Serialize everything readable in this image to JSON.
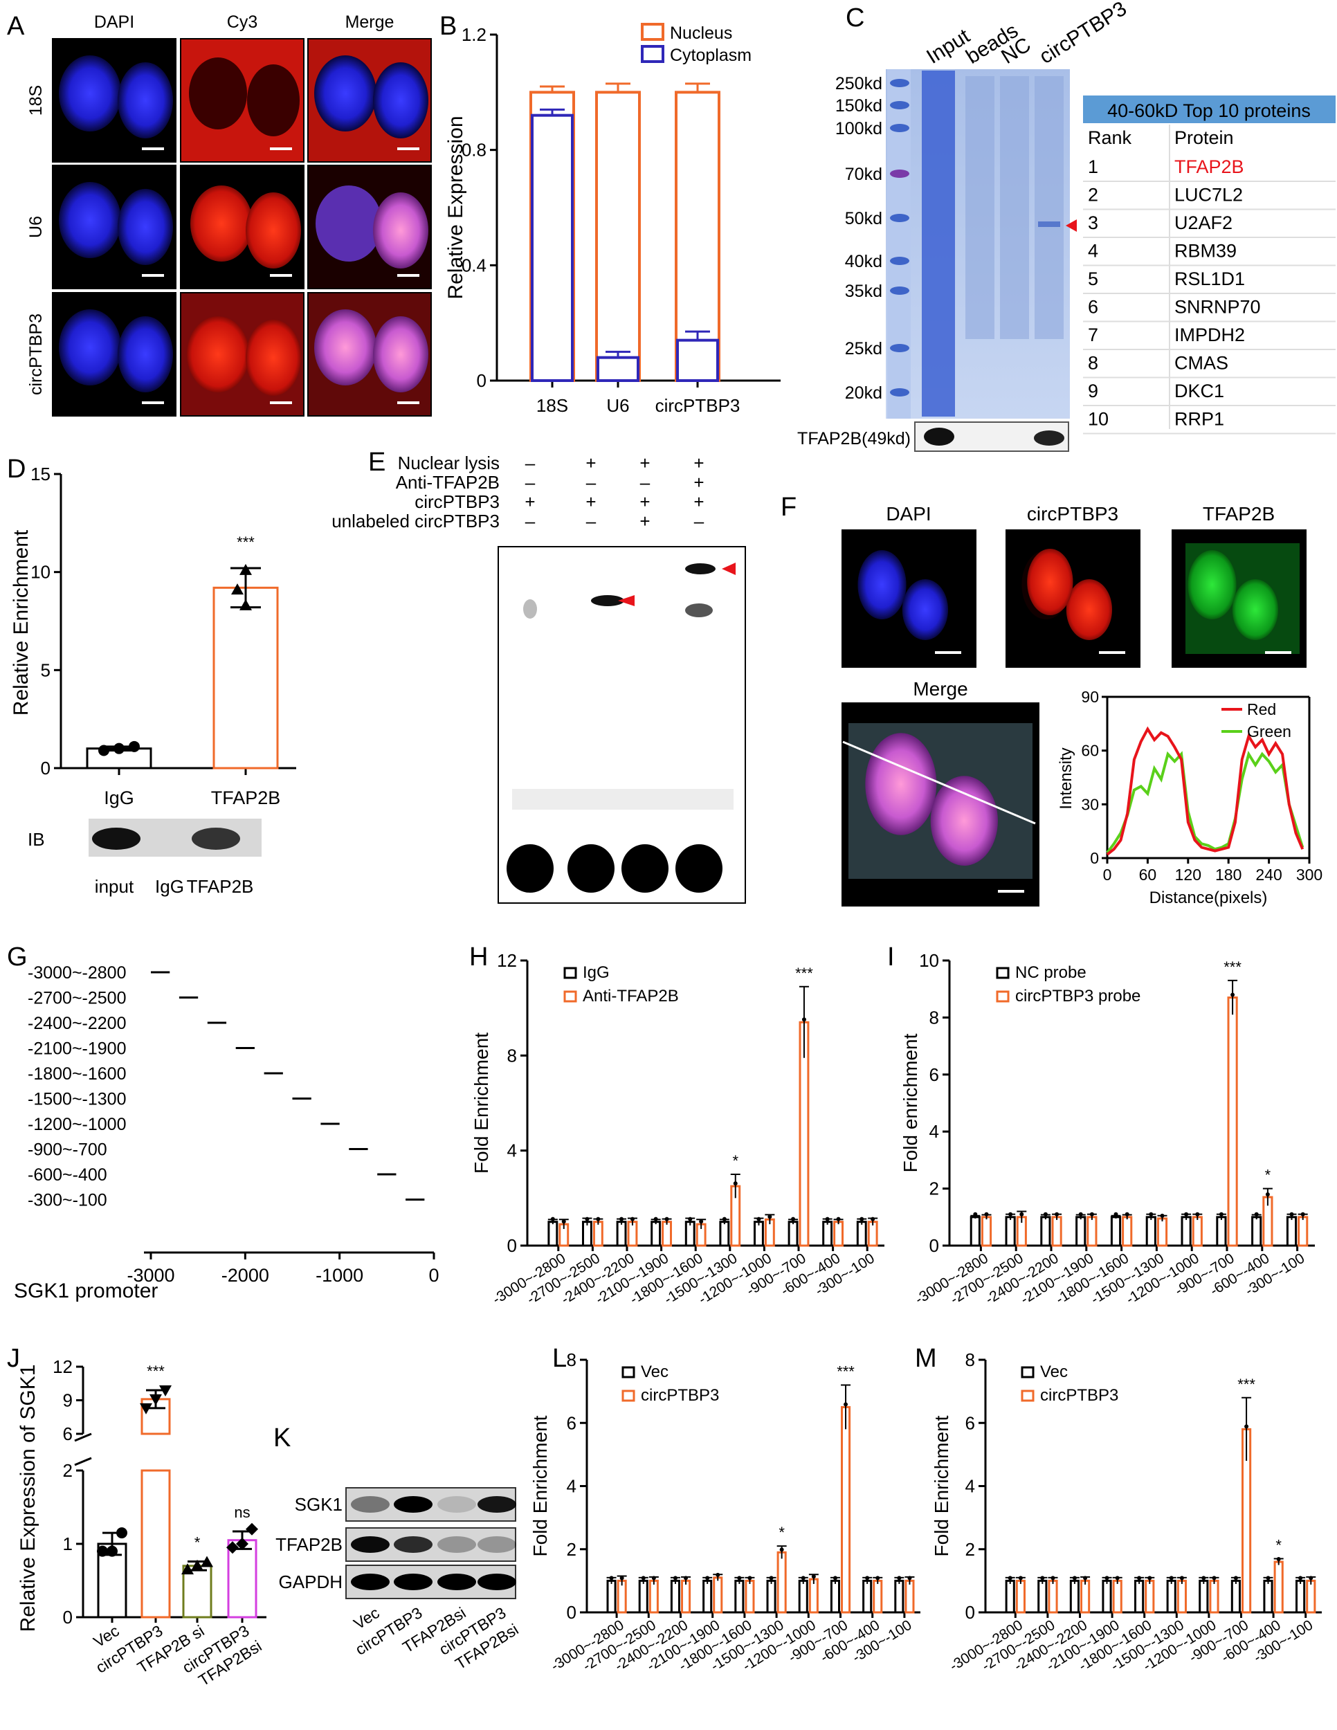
{
  "panel_labels": [
    "A",
    "B",
    "C",
    "D",
    "E",
    "F",
    "G",
    "H",
    "I",
    "J",
    "K",
    "L",
    "M"
  ],
  "colors": {
    "orange": "#f06a2a",
    "blue": "#2f27b8",
    "red_arrow": "#e8141b",
    "grid_border": "#ffffff"
  },
  "panel_a": {
    "columns": [
      "DAPI",
      "Cy3",
      "Merge"
    ],
    "rows": [
      "18S",
      "U6",
      "circPTBP3"
    ]
  },
  "panel_c": {
    "lanes": [
      "Input",
      "beads",
      "NC",
      "circPTBP3"
    ],
    "markers": [
      "250kd",
      "150kd",
      "100kd",
      "70kd",
      "50kd",
      "40kd",
      "35kd",
      "25kd",
      "20kd"
    ],
    "blot_label": "TFAP2B(49kd)",
    "table_title": "40-60kD Top 10 proteins",
    "table_headers": [
      "Rank",
      "Protein"
    ],
    "table_rows": [
      [
        "1",
        "TFAP2B"
      ],
      [
        "2",
        "LUC7L2"
      ],
      [
        "3",
        "U2AF2"
      ],
      [
        "4",
        "RBM39"
      ],
      [
        "5",
        "RSL1D1"
      ],
      [
        "6",
        "SNRNP70"
      ],
      [
        "7",
        "IMPDH2"
      ],
      [
        "8",
        "CMAS"
      ],
      [
        "9",
        "DKC1"
      ],
      [
        "10",
        "RRP1"
      ]
    ]
  },
  "panel_d_ib": {
    "label": "IB",
    "lanes": [
      "input",
      "IgG",
      "TFAP2B"
    ]
  },
  "panel_e": {
    "rows": [
      {
        "label": "Nuclear lysis",
        "marks": [
          "–",
          "+",
          "+",
          "+"
        ]
      },
      {
        "label": "Anti-TFAP2B",
        "marks": [
          "–",
          "–",
          "–",
          "+"
        ]
      },
      {
        "label": "circPTBP3",
        "marks": [
          "+",
          "+",
          "+",
          "+"
        ]
      },
      {
        "label": "unlabeled circPTBP3",
        "marks": [
          "–",
          "–",
          "+",
          "–"
        ]
      }
    ]
  },
  "panel_f": {
    "images": [
      "DAPI",
      "circPTBP3",
      "TFAP2B",
      "Merge"
    ]
  },
  "panel_k": {
    "rows": [
      "SGK1",
      "TFAP2B",
      "GAPDH"
    ],
    "lanes": [
      "Vec",
      "circPTBP3",
      "TFAP2Bsi",
      "circPTBP3\nTFAP2Bsi"
    ]
  },
  "chart_data": [
    {
      "id": "B",
      "type": "bar",
      "categories": [
        "18S",
        "U6",
        "circPTBP3"
      ],
      "series": [
        {
          "name": "Nucleus",
          "values": [
            1.0,
            1.0,
            1.0
          ],
          "error": [
            0.02,
            0.03,
            0.03
          ]
        },
        {
          "name": "Cytoplasm",
          "values": [
            0.92,
            0.08,
            0.14
          ],
          "error": [
            0.02,
            0.02,
            0.03
          ]
        }
      ],
      "ylabel": "Relative Expression",
      "ylim": [
        0,
        1.2
      ],
      "yticks": [
        0,
        0.4,
        0.8,
        1.2
      ],
      "legend": "top-right"
    },
    {
      "id": "D",
      "type": "bar",
      "categories": [
        "IgG",
        "TFAP2B"
      ],
      "values": [
        1.0,
        9.2
      ],
      "error": [
        0.1,
        1.0
      ],
      "points": [
        [
          0.9,
          1.0,
          1.1
        ],
        [
          8.3,
          9.1,
          10.1
        ]
      ],
      "ylabel": "Relative Enrichment",
      "ylim": [
        0,
        15
      ],
      "yticks": [
        0,
        5,
        10,
        15
      ],
      "annotations": [
        "",
        "***"
      ]
    },
    {
      "id": "F",
      "type": "line",
      "x": [
        0,
        10,
        20,
        30,
        40,
        50,
        60,
        70,
        80,
        90,
        100,
        110,
        120,
        130,
        140,
        150,
        160,
        170,
        180,
        190,
        200,
        210,
        220,
        230,
        240,
        250,
        260,
        270,
        280,
        290
      ],
      "series": [
        {
          "name": "Red",
          "values": [
            2,
            5,
            10,
            25,
            55,
            65,
            72,
            66,
            70,
            68,
            62,
            55,
            20,
            10,
            6,
            5,
            4,
            5,
            6,
            20,
            55,
            68,
            62,
            66,
            58,
            64,
            58,
            30,
            14,
            5
          ]
        },
        {
          "name": "Green",
          "values": [
            3,
            8,
            14,
            24,
            38,
            40,
            36,
            50,
            44,
            58,
            54,
            58,
            26,
            12,
            8,
            7,
            5,
            6,
            8,
            22,
            44,
            58,
            52,
            58,
            54,
            48,
            52,
            30,
            18,
            6
          ]
        }
      ],
      "xlabel": "Distance(pixels)",
      "ylabel": "Intensity",
      "xlim": [
        0,
        300
      ],
      "ylim": [
        0,
        90
      ],
      "xticks": [
        0,
        60,
        120,
        180,
        240,
        300
      ],
      "yticks": [
        0,
        30,
        60,
        90
      ],
      "legend": "top-right"
    },
    {
      "id": "G",
      "type": "bar",
      "categories": [
        "-3000~-2800",
        "-2700~-2500",
        "-2400~-2200",
        "-2100~-1900",
        "-1800~-1600",
        "-1500~-1300",
        "-1200~-1000",
        "-900~-700",
        "-600~-400",
        "-300~-100"
      ],
      "start": [
        -3000,
        -2700,
        -2400,
        -2100,
        -1800,
        -1500,
        -1200,
        -900,
        -600,
        -300
      ],
      "end": [
        -2800,
        -2500,
        -2200,
        -1900,
        -1600,
        -1300,
        -1000,
        -700,
        -400,
        -100
      ],
      "xlabel": "SGK1 promoter",
      "xlim": [
        -3000,
        0
      ],
      "xticks": [
        -3000,
        -2000,
        -1000,
        0
      ]
    },
    {
      "id": "H",
      "type": "bar",
      "categories": [
        "-3000~-2800",
        "-2700~-2500",
        "-2400~-2200",
        "-2100~-1900",
        "-1800~-1600",
        "-1500~-1300",
        "-1200~-1000",
        "-900~-700",
        "-600~-400",
        "-300~-100"
      ],
      "series": [
        {
          "name": "IgG",
          "values": [
            1.0,
            1.0,
            1.0,
            1.0,
            1.0,
            1.0,
            1.0,
            1.0,
            1.0,
            1.0
          ],
          "error": [
            0.1,
            0.15,
            0.12,
            0.1,
            0.15,
            0.1,
            0.15,
            0.1,
            0.12,
            0.12
          ]
        },
        {
          "name": "Anti-TFAP2B",
          "values": [
            0.9,
            1.0,
            1.0,
            1.0,
            0.9,
            2.5,
            1.1,
            9.4,
            1.0,
            1.0
          ],
          "error": [
            0.2,
            0.12,
            0.15,
            0.12,
            0.2,
            0.5,
            0.2,
            1.5,
            0.1,
            0.15
          ]
        }
      ],
      "ylabel": "Fold Enrichment",
      "ylim": [
        0,
        12
      ],
      "yticks": [
        0,
        4,
        8,
        12
      ],
      "annotations": [
        "",
        "",
        "",
        "",
        "",
        "*",
        "",
        "***",
        "",
        ""
      ],
      "legend": "top-left"
    },
    {
      "id": "I",
      "type": "bar",
      "categories": [
        "-3000~-2800",
        "-2700~-2500",
        "-2400~-2200",
        "-2100~-1900",
        "-1800~-1600",
        "-1500~-1300",
        "-1200~-1000",
        "-900~-700",
        "-600~-400",
        "-300~-100"
      ],
      "series": [
        {
          "name": "NC probe",
          "values": [
            1.0,
            1.0,
            1.0,
            1.0,
            1.0,
            1.0,
            1.0,
            1.0,
            1.0,
            1.0
          ],
          "error": [
            0.05,
            0.1,
            0.08,
            0.08,
            0.05,
            0.1,
            0.1,
            0.1,
            0.08,
            0.1
          ]
        },
        {
          "name": "circPTBP3 probe",
          "values": [
            1.0,
            1.0,
            1.0,
            1.0,
            1.0,
            0.95,
            1.0,
            8.7,
            1.7,
            1.0
          ],
          "error": [
            0.08,
            0.2,
            0.1,
            0.1,
            0.08,
            0.1,
            0.1,
            0.6,
            0.3,
            0.1
          ]
        }
      ],
      "ylabel": "Fold enrichment",
      "ylim": [
        0,
        10
      ],
      "yticks": [
        0,
        2,
        4,
        6,
        8,
        10
      ],
      "annotations": [
        "",
        "",
        "",
        "",
        "",
        "",
        "",
        "***",
        "*",
        ""
      ],
      "legend": "top-left"
    },
    {
      "id": "J",
      "type": "bar",
      "categories": [
        "Vec",
        "circPTBP3",
        "TFAP2B si",
        "circPTBP3\nTFAP2Bsi"
      ],
      "values": [
        1.0,
        9.1,
        0.7,
        1.05
      ],
      "error": [
        0.15,
        0.8,
        0.06,
        0.12
      ],
      "points": [
        [
          0.9,
          0.9,
          1.15
        ],
        [
          8.3,
          9.1,
          9.9
        ],
        [
          0.65,
          0.7,
          0.75
        ],
        [
          0.95,
          1.0,
          1.2
        ]
      ],
      "bar_colors": [
        "#000000",
        "#f06a2a",
        "#6f7d1e",
        "#d43fe0"
      ],
      "ylabel": "Relative Expression of SGK1",
      "yticks": [
        0,
        1,
        2,
        6,
        9,
        12
      ],
      "axis_break": [
        2,
        6
      ],
      "annotations": [
        "",
        "***",
        "*",
        "ns"
      ]
    },
    {
      "id": "L",
      "type": "bar",
      "categories": [
        "-3000~-2800",
        "-2700~-2500",
        "-2400~-2200",
        "-2100~-1900",
        "-1800~-1600",
        "-1500~-1300",
        "-1200~-1000",
        "-900~-700",
        "-600~-400",
        "-300~-100"
      ],
      "series": [
        {
          "name": "Vec",
          "values": [
            1.0,
            1.0,
            1.0,
            1.0,
            1.0,
            1.0,
            1.0,
            1.0,
            1.0,
            1.0
          ],
          "error": [
            0.1,
            0.1,
            0.1,
            0.1,
            0.1,
            0.1,
            0.1,
            0.1,
            0.1,
            0.1
          ]
        },
        {
          "name": "circPTBP3",
          "values": [
            1.0,
            1.0,
            1.0,
            1.1,
            1.0,
            1.9,
            1.05,
            6.5,
            1.0,
            1.0
          ],
          "error": [
            0.15,
            0.12,
            0.12,
            0.1,
            0.1,
            0.2,
            0.15,
            0.7,
            0.1,
            0.12
          ]
        }
      ],
      "ylabel": "Fold Enrichment",
      "ylim": [
        0,
        8
      ],
      "yticks": [
        0,
        2,
        4,
        6,
        8
      ],
      "annotations": [
        "",
        "",
        "",
        "",
        "",
        "*",
        "",
        "***",
        "",
        ""
      ],
      "legend": "top-left"
    },
    {
      "id": "M",
      "type": "bar",
      "categories": [
        "-3000~-2800",
        "-2700~-2500",
        "-2400~-2200",
        "-2100~-1900",
        "-1800~-1600",
        "-1500~-1300",
        "-1200~-1000",
        "-900~-700",
        "-600~-400",
        "-300~-100"
      ],
      "series": [
        {
          "name": "Vec",
          "values": [
            1.0,
            1.0,
            1.0,
            1.0,
            1.0,
            1.0,
            1.0,
            1.0,
            1.0,
            1.0
          ],
          "error": [
            0.1,
            0.1,
            0.1,
            0.1,
            0.1,
            0.1,
            0.1,
            0.1,
            0.1,
            0.1
          ]
        },
        {
          "name": "circPTBP3",
          "values": [
            1.0,
            1.0,
            1.0,
            1.0,
            1.0,
            1.0,
            1.0,
            5.8,
            1.6,
            1.0
          ],
          "error": [
            0.1,
            0.1,
            0.12,
            0.1,
            0.1,
            0.1,
            0.1,
            1.0,
            0.1,
            0.12
          ]
        }
      ],
      "ylabel": "Fold Enrichment",
      "ylim": [
        0,
        8
      ],
      "yticks": [
        0,
        2,
        4,
        6,
        8
      ],
      "annotations": [
        "",
        "",
        "",
        "",
        "",
        "",
        "",
        "***",
        "*",
        ""
      ],
      "legend": "top-left"
    }
  ]
}
